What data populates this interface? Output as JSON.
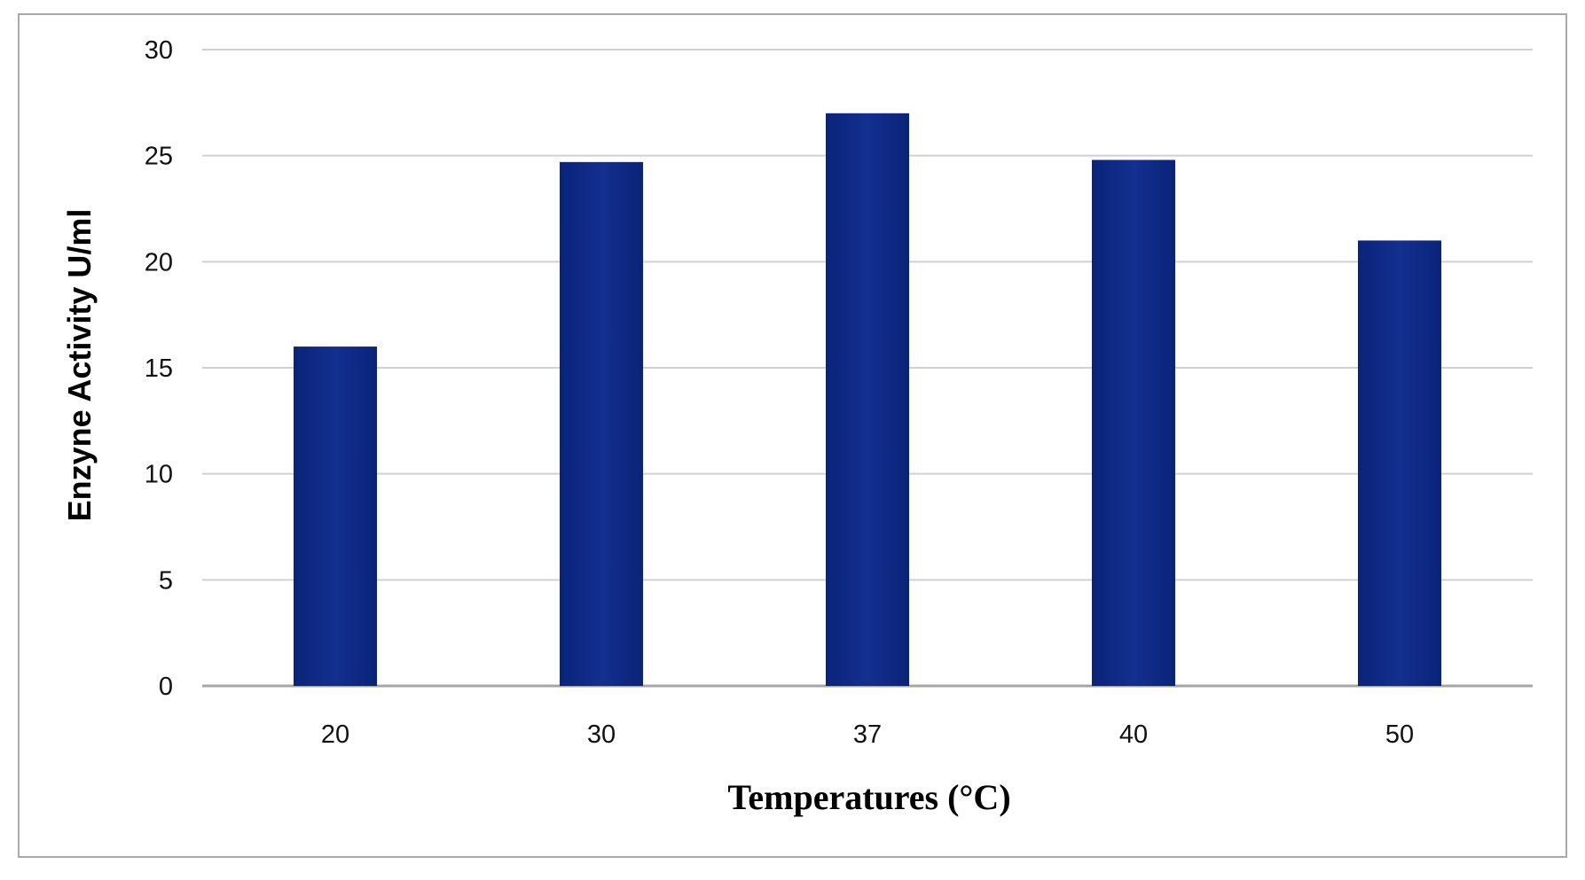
{
  "chart_data": {
    "type": "bar",
    "title": "",
    "xlabel": "Temperatures (°C)",
    "ylabel": "Enzyne  Activity U/ml",
    "categories": [
      "20",
      "30",
      "37",
      "40",
      "50"
    ],
    "values": [
      16,
      24.7,
      27,
      24.8,
      21
    ],
    "ylim": [
      0,
      30
    ],
    "yticks": [
      "0",
      "5",
      "10",
      "15",
      "20",
      "25",
      "30"
    ],
    "grid": true,
    "legend": "none",
    "colors": {
      "bar": "#0a237a",
      "bar_highlight": "#13308f",
      "grid": "#d0d0d0",
      "axis": "#a6a6a6"
    }
  }
}
